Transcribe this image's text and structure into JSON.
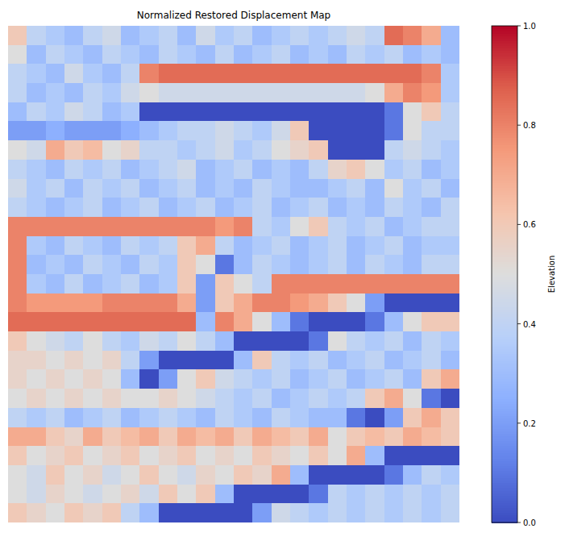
{
  "chart_data": {
    "type": "heatmap",
    "title": "Normalized Restored Displacement Map",
    "tick_labels": false,
    "cells": [
      [
        0.6,
        0.4,
        0.35,
        0.3,
        0.4,
        0.45,
        0.3,
        0.35,
        0.4,
        0.3,
        0.45,
        0.35,
        0.4,
        0.3,
        0.35,
        0.4,
        0.35,
        0.4,
        0.45,
        0.4,
        0.85,
        0.8,
        0.7,
        0.3
      ],
      [
        0.5,
        0.3,
        0.4,
        0.35,
        0.3,
        0.4,
        0.35,
        0.3,
        0.4,
        0.35,
        0.3,
        0.4,
        0.3,
        0.35,
        0.4,
        0.3,
        0.35,
        0.3,
        0.4,
        0.35,
        0.4,
        0.3,
        0.35,
        0.3
      ],
      [
        0.4,
        0.35,
        0.3,
        0.45,
        0.35,
        0.3,
        0.4,
        0.8,
        0.85,
        0.85,
        0.85,
        0.85,
        0.85,
        0.85,
        0.85,
        0.85,
        0.85,
        0.85,
        0.85,
        0.85,
        0.85,
        0.85,
        0.8,
        0.35
      ],
      [
        0.4,
        0.3,
        0.35,
        0.3,
        0.4,
        0.35,
        0.45,
        0.5,
        0.45,
        0.45,
        0.45,
        0.45,
        0.45,
        0.45,
        0.45,
        0.45,
        0.45,
        0.45,
        0.45,
        0.5,
        0.7,
        0.8,
        0.75,
        0.35
      ],
      [
        0.3,
        0.4,
        0.35,
        0.45,
        0.4,
        0.3,
        0.35,
        0.0,
        0.0,
        0.0,
        0.0,
        0.0,
        0.0,
        0.0,
        0.0,
        0.0,
        0.0,
        0.0,
        0.0,
        0.0,
        0.1,
        0.5,
        0.6,
        0.4
      ],
      [
        0.2,
        0.2,
        0.25,
        0.2,
        0.2,
        0.2,
        0.25,
        0.3,
        0.35,
        0.4,
        0.4,
        0.45,
        0.4,
        0.35,
        0.45,
        0.6,
        0.0,
        0.0,
        0.0,
        0.0,
        0.1,
        0.5,
        0.4,
        0.4
      ],
      [
        0.5,
        0.45,
        0.7,
        0.6,
        0.65,
        0.5,
        0.55,
        0.4,
        0.4,
        0.35,
        0.4,
        0.45,
        0.35,
        0.4,
        0.5,
        0.55,
        0.6,
        0.0,
        0.0,
        0.0,
        0.4,
        0.45,
        0.4,
        0.35
      ],
      [
        0.4,
        0.35,
        0.3,
        0.4,
        0.35,
        0.4,
        0.3,
        0.35,
        0.4,
        0.45,
        0.3,
        0.35,
        0.4,
        0.3,
        0.35,
        0.3,
        0.4,
        0.55,
        0.6,
        0.5,
        0.35,
        0.4,
        0.3,
        0.35
      ],
      [
        0.45,
        0.35,
        0.4,
        0.3,
        0.4,
        0.35,
        0.4,
        0.3,
        0.35,
        0.4,
        0.3,
        0.35,
        0.3,
        0.4,
        0.35,
        0.3,
        0.3,
        0.35,
        0.4,
        0.3,
        0.5,
        0.35,
        0.4,
        0.3
      ],
      [
        0.4,
        0.35,
        0.3,
        0.35,
        0.4,
        0.3,
        0.35,
        0.4,
        0.3,
        0.35,
        0.4,
        0.3,
        0.35,
        0.4,
        0.3,
        0.35,
        0.4,
        0.3,
        0.35,
        0.3,
        0.4,
        0.35,
        0.3,
        0.4
      ],
      [
        0.8,
        0.8,
        0.8,
        0.8,
        0.8,
        0.8,
        0.8,
        0.8,
        0.8,
        0.8,
        0.8,
        0.75,
        0.8,
        0.4,
        0.35,
        0.5,
        0.6,
        0.4,
        0.35,
        0.4,
        0.3,
        0.35,
        0.4,
        0.4
      ],
      [
        0.8,
        0.35,
        0.3,
        0.4,
        0.35,
        0.3,
        0.4,
        0.35,
        0.4,
        0.6,
        0.7,
        0.4,
        0.3,
        0.35,
        0.4,
        0.3,
        0.35,
        0.4,
        0.3,
        0.35,
        0.4,
        0.3,
        0.35,
        0.35
      ],
      [
        0.8,
        0.3,
        0.35,
        0.3,
        0.4,
        0.35,
        0.3,
        0.4,
        0.35,
        0.6,
        0.5,
        0.1,
        0.3,
        0.4,
        0.35,
        0.3,
        0.35,
        0.4,
        0.3,
        0.4,
        0.35,
        0.3,
        0.4,
        0.4
      ],
      [
        0.8,
        0.35,
        0.3,
        0.4,
        0.3,
        0.35,
        0.4,
        0.3,
        0.35,
        0.6,
        0.2,
        0.6,
        0.5,
        0.4,
        0.8,
        0.8,
        0.8,
        0.8,
        0.8,
        0.8,
        0.8,
        0.8,
        0.8,
        0.8
      ],
      [
        0.8,
        0.75,
        0.75,
        0.75,
        0.75,
        0.8,
        0.8,
        0.8,
        0.8,
        0.7,
        0.2,
        0.6,
        0.7,
        0.8,
        0.8,
        0.75,
        0.7,
        0.6,
        0.5,
        0.2,
        0.0,
        0.0,
        0.0,
        0.0
      ],
      [
        0.85,
        0.85,
        0.85,
        0.85,
        0.85,
        0.85,
        0.85,
        0.85,
        0.85,
        0.85,
        0.3,
        0.8,
        0.7,
        0.5,
        0.3,
        0.1,
        0.0,
        0.0,
        0.0,
        0.1,
        0.3,
        0.5,
        0.6,
        0.6
      ],
      [
        0.6,
        0.5,
        0.45,
        0.4,
        0.5,
        0.4,
        0.35,
        0.45,
        0.4,
        0.5,
        0.4,
        0.3,
        0.0,
        0.0,
        0.0,
        0.0,
        0.1,
        0.5,
        0.4,
        0.35,
        0.4,
        0.3,
        0.4,
        0.35
      ],
      [
        0.55,
        0.55,
        0.5,
        0.55,
        0.5,
        0.55,
        0.4,
        0.2,
        0.0,
        0.0,
        0.0,
        0.0,
        0.3,
        0.6,
        0.4,
        0.35,
        0.4,
        0.3,
        0.35,
        0.4,
        0.3,
        0.35,
        0.4,
        0.3
      ],
      [
        0.55,
        0.5,
        0.55,
        0.5,
        0.55,
        0.5,
        0.3,
        0.0,
        0.2,
        0.5,
        0.6,
        0.45,
        0.4,
        0.35,
        0.4,
        0.3,
        0.35,
        0.4,
        0.3,
        0.35,
        0.4,
        0.3,
        0.6,
        0.7
      ],
      [
        0.5,
        0.55,
        0.5,
        0.55,
        0.5,
        0.55,
        0.5,
        0.5,
        0.55,
        0.5,
        0.45,
        0.4,
        0.35,
        0.4,
        0.3,
        0.35,
        0.4,
        0.35,
        0.4,
        0.6,
        0.7,
        0.5,
        0.1,
        0.0
      ],
      [
        0.4,
        0.35,
        0.4,
        0.3,
        0.35,
        0.4,
        0.3,
        0.35,
        0.4,
        0.35,
        0.3,
        0.4,
        0.35,
        0.3,
        0.4,
        0.35,
        0.3,
        0.3,
        0.1,
        0.0,
        0.2,
        0.6,
        0.7,
        0.6
      ],
      [
        0.7,
        0.7,
        0.6,
        0.55,
        0.7,
        0.6,
        0.65,
        0.7,
        0.6,
        0.7,
        0.65,
        0.7,
        0.6,
        0.7,
        0.65,
        0.6,
        0.7,
        0.5,
        0.6,
        0.65,
        0.6,
        0.7,
        0.65,
        0.6
      ],
      [
        0.6,
        0.5,
        0.55,
        0.6,
        0.5,
        0.55,
        0.6,
        0.5,
        0.55,
        0.6,
        0.5,
        0.55,
        0.5,
        0.6,
        0.55,
        0.5,
        0.6,
        0.5,
        0.7,
        0.3,
        0.0,
        0.0,
        0.0,
        0.0
      ],
      [
        0.5,
        0.45,
        0.6,
        0.5,
        0.55,
        0.45,
        0.5,
        0.6,
        0.5,
        0.45,
        0.55,
        0.5,
        0.6,
        0.55,
        0.7,
        0.3,
        0.0,
        0.0,
        0.0,
        0.0,
        0.1,
        0.3,
        0.4,
        0.35
      ],
      [
        0.5,
        0.45,
        0.55,
        0.5,
        0.45,
        0.5,
        0.55,
        0.45,
        0.6,
        0.5,
        0.6,
        0.3,
        0.0,
        0.0,
        0.0,
        0.0,
        0.1,
        0.4,
        0.35,
        0.4,
        0.35,
        0.4,
        0.35,
        0.4
      ],
      [
        0.6,
        0.55,
        0.5,
        0.6,
        0.55,
        0.6,
        0.4,
        0.3,
        0.0,
        0.0,
        0.0,
        0.0,
        0.0,
        0.2,
        0.45,
        0.4,
        0.35,
        0.4,
        0.35,
        0.4,
        0.35,
        0.4,
        0.35,
        0.4
      ]
    ],
    "colorbar_label": "Elevation",
    "colorbar_range": [
      0,
      1
    ],
    "colorbar_ticks": [
      {
        "value": 0,
        "label": "0.0"
      },
      {
        "value": 0.2,
        "label": "0.2"
      },
      {
        "value": 0.4,
        "label": "0.4"
      },
      {
        "value": 0.6,
        "label": "0.6"
      },
      {
        "value": 0.8,
        "label": "0.8"
      },
      {
        "value": 1,
        "label": "1.0"
      }
    ]
  }
}
